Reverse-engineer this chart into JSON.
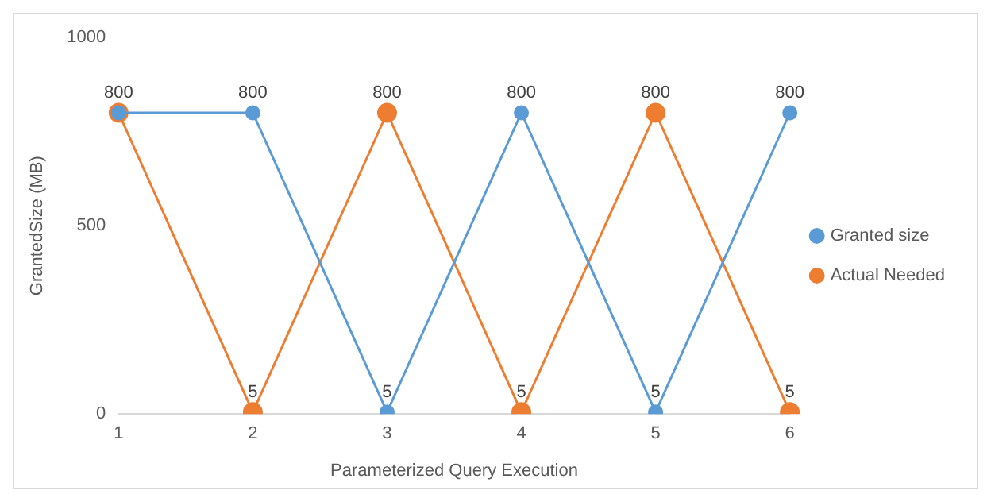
{
  "chart_data": {
    "type": "line",
    "xlabel": "Parameterized Query Execution",
    "ylabel": "GrantedSize (MB)",
    "categories": [
      "1",
      "2",
      "3",
      "4",
      "5",
      "6"
    ],
    "series": [
      {
        "name": "Granted size",
        "color": "#5b9bd5",
        "values": [
          800,
          800,
          5,
          800,
          5,
          800
        ]
      },
      {
        "name": "Actual Needed",
        "color": "#ed7d31",
        "values": [
          800,
          5,
          800,
          5,
          800,
          5
        ],
        "value_labels": [
          null,
          "5",
          "800",
          "5",
          "800",
          "5"
        ]
      }
    ],
    "ylim": [
      0,
      1000
    ],
    "yticks": [
      0,
      500,
      1000
    ],
    "grid": false,
    "legend": "right",
    "marker": "circle",
    "line_style": "solid",
    "value_labels": [
      "800",
      "800",
      "5",
      "800",
      "5",
      "800"
    ]
  }
}
